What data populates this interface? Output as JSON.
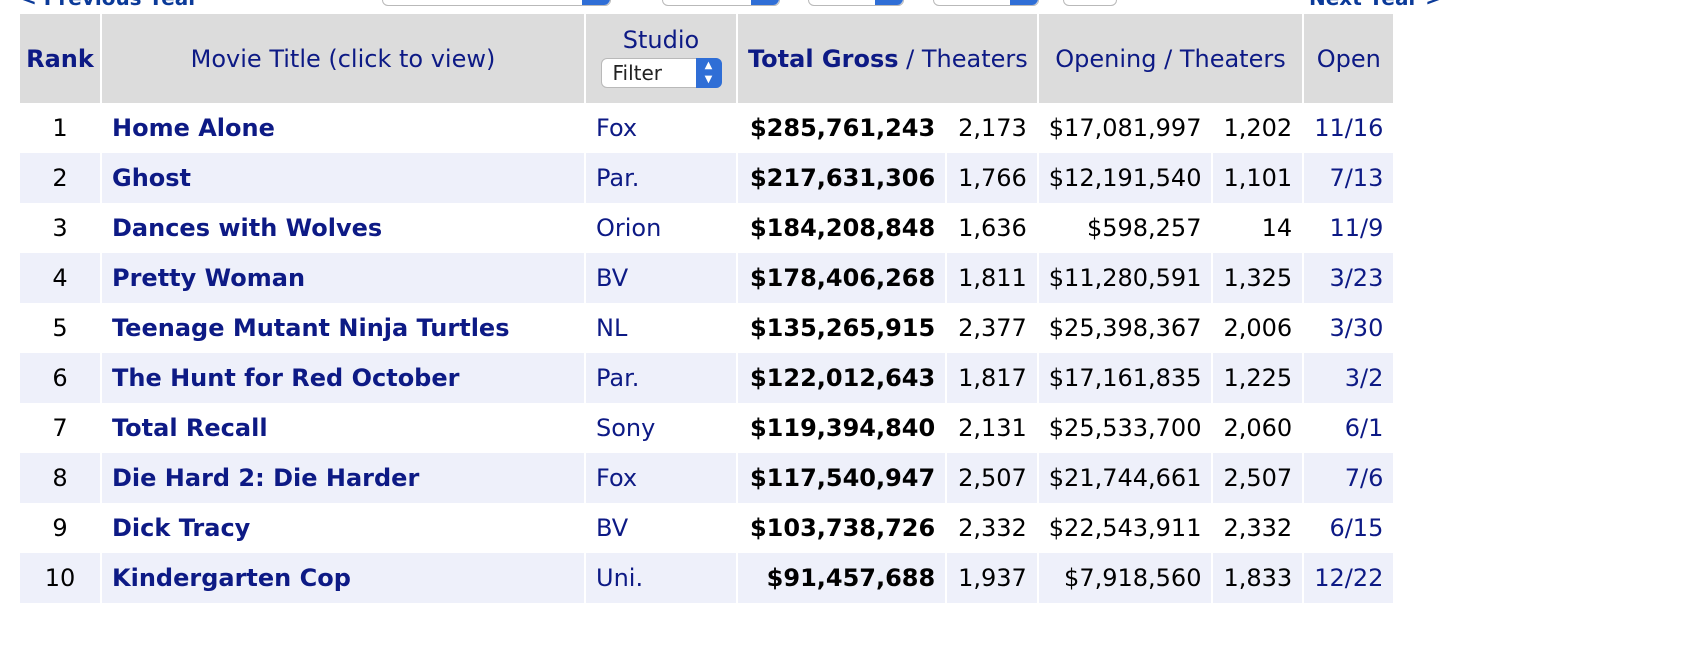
{
  "nav": {
    "prev_label": "< Previous Year",
    "next_label": "Next Year >"
  },
  "table": {
    "headers": {
      "rank": "Rank",
      "title": "Movie Title (click to view)",
      "studio": "Studio",
      "studio_filter": "Filter",
      "total_gross": "Total Gross",
      "total_theaters": "Theaters",
      "opening": "Opening",
      "opening_theaters": "Theaters",
      "open": "Open",
      "slash": "/"
    },
    "rows": [
      {
        "rank": "1",
        "title": "Home Alone",
        "studio": "Fox",
        "gross": "$285,761,243",
        "theaters": "2,173",
        "opening": "$17,081,997",
        "opening_theaters": "1,202",
        "open": "11/16"
      },
      {
        "rank": "2",
        "title": "Ghost",
        "studio": "Par.",
        "gross": "$217,631,306",
        "theaters": "1,766",
        "opening": "$12,191,540",
        "opening_theaters": "1,101",
        "open": "7/13"
      },
      {
        "rank": "3",
        "title": "Dances with Wolves",
        "studio": "Orion",
        "gross": "$184,208,848",
        "theaters": "1,636",
        "opening": "$598,257",
        "opening_theaters": "14",
        "open": "11/9"
      },
      {
        "rank": "4",
        "title": "Pretty Woman",
        "studio": "BV",
        "gross": "$178,406,268",
        "theaters": "1,811",
        "opening": "$11,280,591",
        "opening_theaters": "1,325",
        "open": "3/23"
      },
      {
        "rank": "5",
        "title": "Teenage Mutant Ninja Turtles",
        "studio": "NL",
        "gross": "$135,265,915",
        "theaters": "2,377",
        "opening": "$25,398,367",
        "opening_theaters": "2,006",
        "open": "3/30"
      },
      {
        "rank": "6",
        "title": "The Hunt for Red October",
        "studio": "Par.",
        "gross": "$122,012,643",
        "theaters": "1,817",
        "opening": "$17,161,835",
        "opening_theaters": "1,225",
        "open": "3/2"
      },
      {
        "rank": "7",
        "title": "Total Recall",
        "studio": "Sony",
        "gross": "$119,394,840",
        "theaters": "2,131",
        "opening": "$25,533,700",
        "opening_theaters": "2,060",
        "open": "6/1"
      },
      {
        "rank": "8",
        "title": "Die Hard 2: Die Harder",
        "studio": "Fox",
        "gross": "$117,540,947",
        "theaters": "2,507",
        "opening": "$21,744,661",
        "opening_theaters": "2,507",
        "open": "7/6"
      },
      {
        "rank": "9",
        "title": "Dick Tracy",
        "studio": "BV",
        "gross": "$103,738,726",
        "theaters": "2,332",
        "opening": "$22,543,911",
        "opening_theaters": "2,332",
        "open": "6/15"
      },
      {
        "rank": "10",
        "title": "Kindergarten Cop",
        "studio": "Uni.",
        "gross": "$91,457,688",
        "theaters": "1,937",
        "opening": "$7,918,560",
        "opening_theaters": "1,833",
        "open": "12/22"
      }
    ]
  },
  "colors": {
    "header_bg": "#dcdcdc",
    "link": "#0d1a85",
    "row_alt_bg": "#eef0fa",
    "select_accent": "#2f6ed6"
  }
}
